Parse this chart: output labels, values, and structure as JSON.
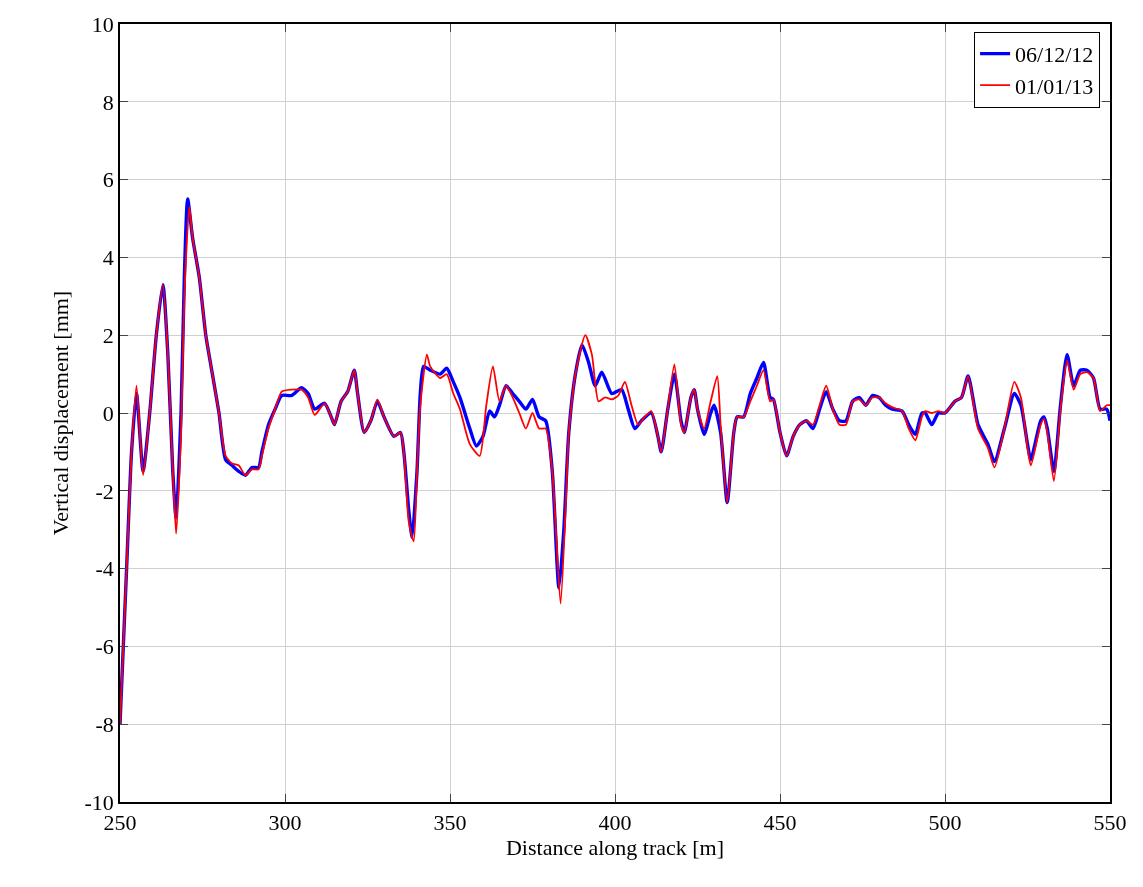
{
  "chart_data": {
    "type": "line",
    "xlabel": "Distance along track [m]",
    "ylabel": "Vertical displacement [mm]",
    "xlim": [
      250,
      550
    ],
    "xticks": [
      250,
      300,
      350,
      400,
      450,
      500,
      550
    ],
    "ylim": [
      -10,
      10
    ],
    "yticks": [
      -10,
      -8,
      -6,
      -4,
      -2,
      0,
      2,
      4,
      6,
      8,
      10
    ],
    "grid": true,
    "legend": "top right",
    "series": [
      {
        "name": "06/12/12",
        "color": "#0000ff",
        "x": [
          250,
          252,
          253.5,
          255,
          257,
          259,
          261,
          263,
          264.5,
          266,
          267,
          268.5,
          269.5,
          270.5,
          272,
          274,
          276,
          278,
          280,
          282,
          284,
          286,
          288,
          290,
          292,
          293,
          295,
          297,
          299,
          302,
          305,
          307,
          309,
          312,
          314,
          315,
          317,
          319,
          321,
          322,
          324,
          326,
          328,
          330,
          333,
          335,
          336,
          337.5,
          338.5,
          340,
          341,
          342,
          344,
          347,
          349,
          351,
          353,
          356,
          358,
          360,
          362,
          363.5,
          365,
          367,
          369,
          371,
          373,
          375,
          377,
          379,
          381,
          383,
          384.5,
          386,
          388,
          390,
          392,
          394,
          396,
          399,
          402,
          404,
          406,
          408,
          411,
          413,
          414,
          416,
          418,
          420,
          421,
          423,
          424,
          425,
          427,
          429,
          430,
          432,
          434,
          436,
          437,
          439,
          441,
          443,
          445,
          447,
          448,
          450,
          452,
          454,
          456,
          458,
          460,
          462,
          464,
          466,
          468,
          470,
          472,
          474,
          476,
          478,
          480,
          482,
          484,
          487,
          489,
          491,
          493,
          494,
          496,
          498,
          500,
          503,
          505,
          507,
          510,
          513,
          515,
          518,
          521,
          523,
          525,
          526,
          529,
          530,
          531,
          533,
          535,
          537,
          539,
          541,
          543,
          545,
          547,
          549,
          550
        ],
        "values": [
          -8.0,
          -4,
          -1,
          0.5,
          -1.5,
          0,
          2,
          3.3,
          1.5,
          -1.5,
          -2.7,
          0,
          3.5,
          5.5,
          4.5,
          3.5,
          2,
          1,
          0,
          -1.2,
          -1.35,
          -1.5,
          -1.6,
          -1.4,
          -1.4,
          -1,
          -0.3,
          0.1,
          0.45,
          0.45,
          0.65,
          0.5,
          0.1,
          0.25,
          -0.1,
          -0.3,
          0.3,
          0.55,
          1.1,
          0.5,
          -0.5,
          -0.2,
          0.3,
          -0.1,
          -0.6,
          -0.5,
          -1,
          -2.5,
          -3.2,
          -1.5,
          0.5,
          1.2,
          1.1,
          1.0,
          1.15,
          0.8,
          0.4,
          -0.4,
          -0.85,
          -0.6,
          0.05,
          -0.1,
          0.2,
          0.7,
          0.5,
          0.3,
          0.1,
          0.35,
          -0.1,
          -0.2,
          -1.5,
          -4.5,
          -3,
          -0.5,
          1,
          1.75,
          1.3,
          0.7,
          1.05,
          0.5,
          0.6,
          0.1,
          -0.4,
          -0.2,
          0.0,
          -0.6,
          -1.0,
          0.1,
          1.0,
          -0.2,
          -0.5,
          0.4,
          0.6,
          0.1,
          -0.55,
          0,
          0.2,
          -0.5,
          -2.3,
          -0.5,
          -0.1,
          -0.1,
          0.5,
          0.9,
          1.3,
          0.4,
          0.35,
          -0.5,
          -1.1,
          -0.6,
          -0.3,
          -0.2,
          -0.4,
          0.1,
          0.55,
          0.1,
          -0.2,
          -0.2,
          0.3,
          0.4,
          0.2,
          0.45,
          0.4,
          0.2,
          0.1,
          0.05,
          -0.3,
          -0.55,
          0,
          0,
          -0.3,
          0,
          0,
          0.3,
          0.4,
          0.95,
          -0.3,
          -0.8,
          -1.25,
          -0.4,
          0.5,
          0.2,
          -0.8,
          -1.2,
          -0.2,
          -0.1,
          -0.4,
          -1.5,
          0.2,
          1.5,
          0.7,
          1.1,
          1.1,
          0.9,
          0.1,
          0.1,
          -0.2
        ]
      },
      {
        "name": "01/01/13",
        "color": "#ff0000",
        "x": [
          250,
          252,
          253.5,
          255,
          257,
          259,
          261,
          263,
          264.5,
          266,
          267,
          268.5,
          269.5,
          271,
          272,
          274,
          276,
          278,
          280,
          282,
          284,
          286,
          288,
          290,
          292,
          293,
          295,
          297,
          299,
          302,
          305,
          307,
          309,
          312,
          314,
          315,
          317,
          319,
          321,
          322,
          324,
          326,
          328,
          330,
          333,
          335,
          336,
          337.5,
          339,
          340,
          341,
          343,
          344,
          347,
          349,
          351,
          353,
          356,
          359,
          361,
          363,
          365,
          367,
          369,
          371,
          373,
          375,
          377,
          379,
          381,
          383.5,
          385,
          386,
          388,
          391,
          393,
          395,
          397,
          399,
          401,
          403,
          405,
          407,
          409,
          411,
          413,
          414,
          416,
          418,
          420,
          421,
          423,
          424,
          425,
          427,
          429,
          431,
          432,
          434,
          436,
          437,
          439,
          441,
          443,
          445,
          447,
          448,
          450,
          452,
          454,
          456,
          458,
          460,
          462,
          464,
          466,
          468,
          470,
          472,
          474,
          476,
          478,
          480,
          482,
          484,
          487,
          489,
          491,
          493,
          494,
          496,
          498,
          500,
          503,
          505,
          507,
          510,
          513,
          515,
          518,
          521,
          523,
          525,
          526,
          529,
          530,
          531,
          533,
          535,
          537,
          539,
          541,
          543,
          545,
          547,
          549,
          550
        ],
        "values": [
          -8.0,
          -4,
          -1,
          0.7,
          -1.6,
          0,
          2,
          3.3,
          1.5,
          -1.5,
          -3.1,
          -0.5,
          3.0,
          5.3,
          4.5,
          3.5,
          2,
          1,
          0,
          -1.1,
          -1.3,
          -1.35,
          -1.6,
          -1.45,
          -1.45,
          -1.1,
          -0.4,
          0.1,
          0.55,
          0.6,
          0.6,
          0.4,
          -0.05,
          0.25,
          -0.1,
          -0.3,
          0.3,
          0.55,
          1.1,
          0.5,
          -0.5,
          -0.2,
          0.35,
          -0.1,
          -0.6,
          -0.5,
          -1,
          -2.8,
          -3.3,
          -1.5,
          0.2,
          1.5,
          1.2,
          0.9,
          1.0,
          0.5,
          0.1,
          -0.8,
          -1.1,
          0.2,
          1.2,
          0.3,
          0.7,
          0.4,
          0.0,
          -0.4,
          0.0,
          -0.4,
          -0.4,
          -1.5,
          -4.9,
          -2.5,
          -0.5,
          1,
          2.0,
          1.5,
          0.3,
          0.4,
          0.35,
          0.45,
          0.8,
          0.2,
          -0.3,
          -0.1,
          0.05,
          -0.6,
          -1.0,
          0.1,
          1.25,
          -0.3,
          -0.5,
          0.4,
          0.6,
          0.1,
          -0.4,
          0.3,
          0.95,
          -0.3,
          -2.3,
          -0.5,
          -0.1,
          -0.1,
          0.3,
          0.7,
          1.1,
          0.3,
          0.35,
          -0.5,
          -1.1,
          -0.6,
          -0.3,
          -0.2,
          -0.3,
          0.2,
          0.7,
          0.1,
          -0.3,
          -0.3,
          0.3,
          0.35,
          0.2,
          0.4,
          0.4,
          0.25,
          0.15,
          0.05,
          -0.4,
          -0.7,
          -0.1,
          0.05,
          0.0,
          0.05,
          0,
          0.3,
          0.4,
          0.95,
          -0.4,
          -0.9,
          -1.4,
          -0.4,
          0.8,
          0.4,
          -0.9,
          -1.35,
          -0.3,
          -0.15,
          -0.5,
          -1.75,
          0.1,
          1.35,
          0.6,
          1.0,
          1.05,
          0.9,
          0.05,
          0.2,
          0.2
        ]
      }
    ]
  }
}
